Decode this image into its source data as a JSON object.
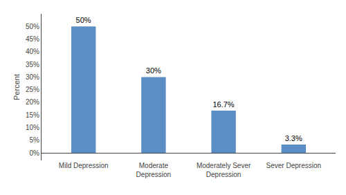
{
  "chart_data": {
    "type": "bar",
    "categories": [
      "Mild Depression",
      "Moderate\nDepression",
      "Moderately Sever\nDepression",
      "Sever Depression"
    ],
    "values": [
      50,
      30,
      16.7,
      3.3
    ],
    "value_labels": [
      "50%",
      "30%",
      "16.7%",
      "3.3%"
    ],
    "data_labels": true,
    "color": "#5b8ec4",
    "ylabel": "Percent",
    "ylim": [
      -3,
      55
    ],
    "yticks": [
      {
        "value": 0,
        "label": "0%"
      },
      {
        "value": 5,
        "label": "5%"
      },
      {
        "value": 10,
        "label": "10%"
      },
      {
        "value": 15,
        "label": "15%"
      },
      {
        "value": 20,
        "label": "20%"
      },
      {
        "value": 25,
        "label": "25%"
      },
      {
        "value": 30,
        "label": "30%"
      },
      {
        "value": 35,
        "label": "35%"
      },
      {
        "value": 40,
        "label": "40%"
      },
      {
        "value": 45,
        "label": "45%"
      },
      {
        "value": 50,
        "label": "50%"
      }
    ],
    "grid": false
  }
}
